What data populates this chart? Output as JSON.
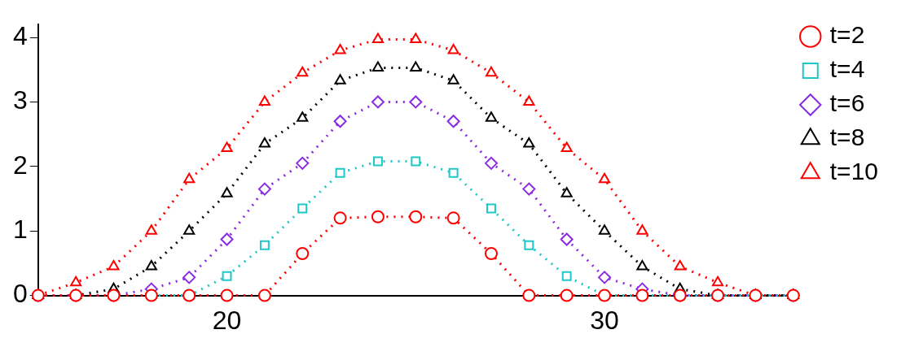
{
  "chart_data": {
    "type": "line",
    "x": [
      15,
      16,
      17,
      18,
      19,
      20,
      21,
      22,
      23,
      24,
      25,
      26,
      27,
      28,
      29,
      30,
      31,
      32,
      33,
      34,
      35
    ],
    "xlim": [
      15,
      35
    ],
    "xticks": [
      20,
      30
    ],
    "ylim": [
      0,
      4.2
    ],
    "yticks": [
      0,
      1,
      2,
      3,
      4
    ],
    "grid": false,
    "legend": "top right",
    "line_style": "dotted",
    "series": [
      {
        "name": "t=2",
        "color": "#ff0000",
        "marker": "circle",
        "values": [
          0,
          0,
          0,
          0,
          0,
          0,
          0,
          0.65,
          1.2,
          1.22,
          1.22,
          1.2,
          0.65,
          0,
          0,
          0,
          0,
          0,
          0,
          0,
          0
        ]
      },
      {
        "name": "t=4",
        "color": "#1ec8c8",
        "marker": "square",
        "values": [
          null,
          null,
          null,
          0,
          0,
          0.3,
          0.78,
          1.35,
          1.9,
          2.08,
          2.08,
          1.9,
          1.35,
          0.78,
          0.3,
          0,
          0,
          0,
          0,
          0,
          0
        ]
      },
      {
        "name": "t=6",
        "color": "#8a2be2",
        "marker": "diamond",
        "values": [
          0,
          0,
          0,
          0.1,
          0.28,
          0.87,
          1.65,
          2.05,
          2.7,
          3.0,
          3.0,
          2.7,
          2.05,
          1.65,
          0.87,
          0.28,
          0.1,
          0,
          0,
          0,
          0
        ]
      },
      {
        "name": "t=8",
        "color": "#000000",
        "marker": "triangle",
        "values": [
          0,
          0,
          0.1,
          0.45,
          1.0,
          1.58,
          2.35,
          2.75,
          3.33,
          3.53,
          3.53,
          3.33,
          2.75,
          2.35,
          1.58,
          1.0,
          0.45,
          0.1,
          0,
          0,
          0
        ]
      },
      {
        "name": "t=10",
        "color": "#ff0000",
        "marker": "triangle",
        "values": [
          0,
          0.2,
          0.45,
          1.0,
          1.8,
          2.28,
          3.0,
          3.45,
          3.8,
          3.97,
          3.97,
          3.8,
          3.45,
          3.0,
          2.28,
          1.8,
          1.0,
          0.45,
          0.2,
          0,
          0
        ]
      }
    ]
  }
}
